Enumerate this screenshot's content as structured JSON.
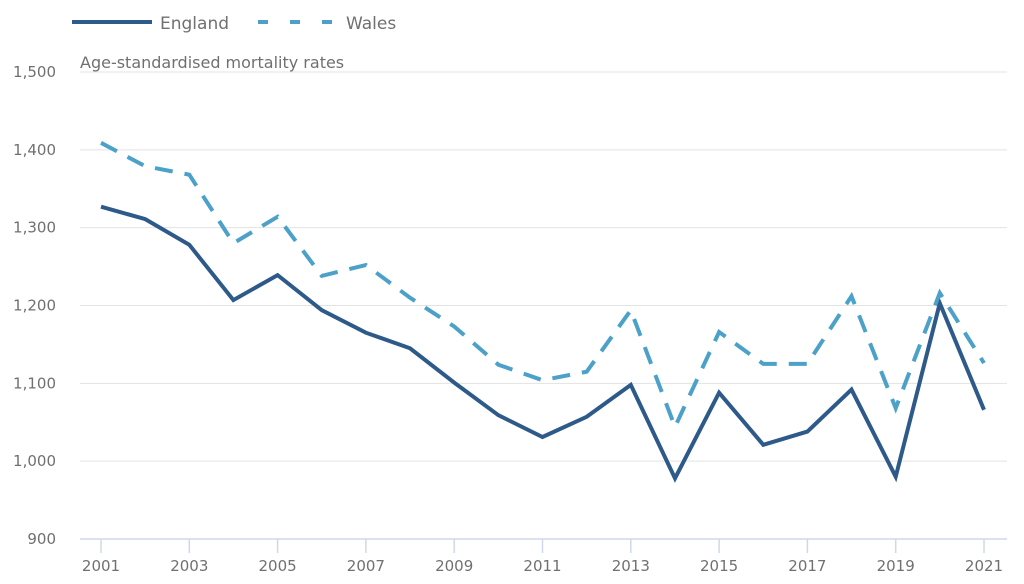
{
  "chart_data": {
    "type": "line",
    "title": "",
    "subtitle": "Age-standardised mortality rates",
    "xlabel": "",
    "ylabel": "Age-standardised mortality rates",
    "x": [
      2001,
      2002,
      2003,
      2004,
      2005,
      2006,
      2007,
      2008,
      2009,
      2010,
      2011,
      2012,
      2013,
      2014,
      2015,
      2016,
      2017,
      2018,
      2019,
      2020,
      2021
    ],
    "x_tick_labels": [
      "2001",
      "2003",
      "2005",
      "2007",
      "2009",
      "2011",
      "2013",
      "2015",
      "2017",
      "2019",
      "2021"
    ],
    "x_ticks": [
      2001,
      2003,
      2005,
      2007,
      2009,
      2011,
      2013,
      2015,
      2017,
      2019,
      2021
    ],
    "ylim": [
      900,
      1500
    ],
    "y_ticks": [
      900,
      1000,
      1100,
      1200,
      1300,
      1400,
      1500
    ],
    "y_tick_labels": [
      "900",
      "1,000",
      "1,100",
      "1,200",
      "1,300",
      "1,400",
      "1,500"
    ],
    "grid": true,
    "legend_position": "top-left",
    "series": [
      {
        "name": "England",
        "style": "solid",
        "color": "#2e5a8a",
        "values": [
          1327,
          1311,
          1278,
          1207,
          1239,
          1194,
          1165,
          1145,
          1101,
          1059,
          1031,
          1057,
          1098,
          978,
          1088,
          1021,
          1038,
          1092,
          980,
          1203,
          1066
        ]
      },
      {
        "name": "Wales",
        "style": "dashed",
        "color": "#4ba1c8",
        "values": [
          1409,
          1379,
          1368,
          1280,
          1314,
          1238,
          1252,
          1210,
          1173,
          1124,
          1104,
          1115,
          1194,
          1044,
          1166,
          1125,
          1125,
          1212,
          1068,
          1216,
          1126
        ]
      }
    ]
  },
  "colors": {
    "grid": "#e3e3e3",
    "axis": "#cfd8ea",
    "text": "#707070"
  }
}
